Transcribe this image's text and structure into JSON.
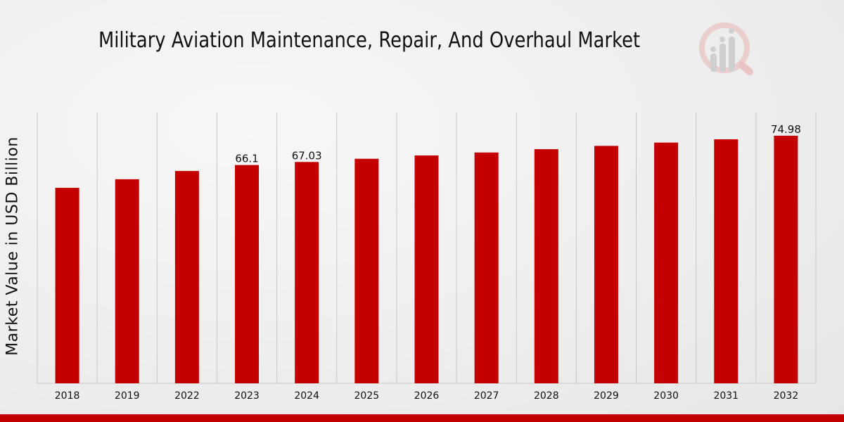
{
  "chart_data": {
    "type": "bar",
    "title": "Military Aviation Maintenance, Repair, And Overhaul Market",
    "xlabel": "",
    "ylabel": "Market Value in USD Billion",
    "categories": [
      "2018",
      "2019",
      "2022",
      "2023",
      "2024",
      "2025",
      "2026",
      "2027",
      "2028",
      "2029",
      "2030",
      "2031",
      "2032"
    ],
    "values": [
      59.2,
      61.8,
      64.3,
      66.1,
      67.03,
      68.0,
      69.0,
      69.9,
      70.9,
      71.9,
      72.9,
      73.9,
      74.98
    ],
    "data_labels": [
      {
        "index": 3,
        "text": "66.1"
      },
      {
        "index": 4,
        "text": "67.03"
      },
      {
        "index": 12,
        "text": "74.98"
      }
    ],
    "ylim": [
      0,
      82
    ],
    "grid": "vertical",
    "bar_color": "#c40000",
    "grid_color": "#c8c8c8"
  },
  "colors": {
    "accent_bar": "#c40000",
    "logo_gray": "#c9c9c9",
    "logo_red": "#e8b4b4"
  }
}
